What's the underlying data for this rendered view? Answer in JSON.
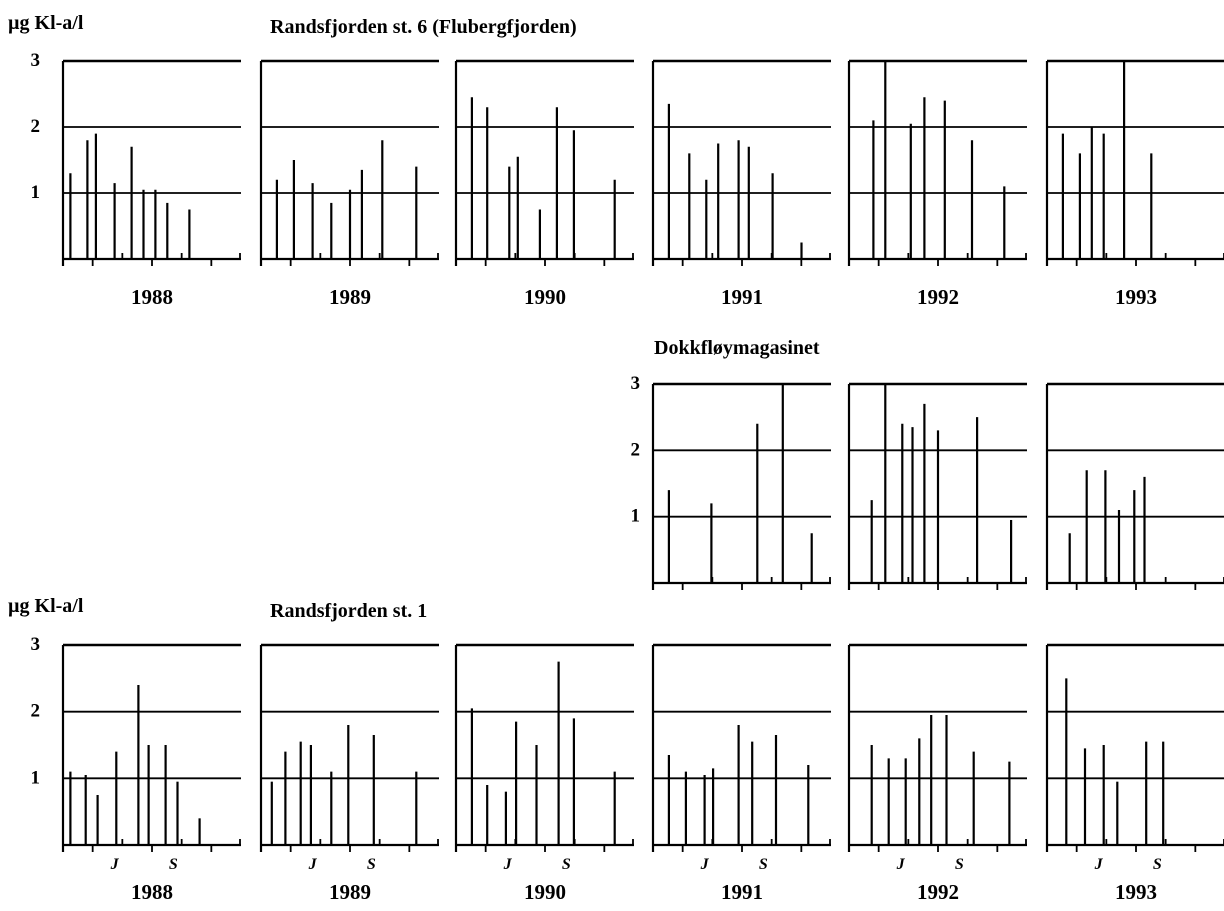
{
  "texts": {
    "unit_top": "µg Kl-a/l",
    "title_top": "Randsfjorden st. 6 (Flubergfjorden)",
    "title_mid": "Dokkfløymagasinet",
    "unit_bottom": "µg Kl-a/l",
    "title_bottom": "Randsfjorden st. 1"
  },
  "chart_data": [
    {
      "type": "bar",
      "title": "Randsfjorden st. 6 (Flubergfjorden)",
      "ylabel": "µg Kl-a/l",
      "ylim": [
        0,
        3
      ],
      "yticks": [
        "1",
        "2",
        "3"
      ],
      "grid": true,
      "panels": [
        {
          "year": "1988",
          "x": [
            0.02,
            0.12,
            0.17,
            0.28,
            0.38,
            0.45,
            0.52,
            0.59,
            0.72
          ],
          "values": [
            1.3,
            1.8,
            1.9,
            1.15,
            1.7,
            1.05,
            1.05,
            0.85,
            0.75
          ]
        },
        {
          "year": "1989",
          "x": [
            0.07,
            0.17,
            0.28,
            0.39,
            0.5,
            0.57,
            0.69,
            0.89
          ],
          "values": [
            1.2,
            1.5,
            1.15,
            0.85,
            1.05,
            1.35,
            1.8,
            1.4
          ]
        },
        {
          "year": "1990",
          "x": [
            0.07,
            0.16,
            0.29,
            0.34,
            0.47,
            0.57,
            0.67,
            0.91
          ],
          "values": [
            2.45,
            2.3,
            1.4,
            1.55,
            0.75,
            2.3,
            1.95,
            1.2
          ]
        },
        {
          "year": "1991",
          "x": [
            0.07,
            0.19,
            0.29,
            0.36,
            0.48,
            0.54,
            0.68,
            0.85
          ],
          "values": [
            2.35,
            1.6,
            1.2,
            1.75,
            1.8,
            1.7,
            1.3,
            0.25
          ]
        },
        {
          "year": "1992",
          "x": [
            0.12,
            0.19,
            0.34,
            0.42,
            0.54,
            0.7,
            0.89
          ],
          "values": [
            2.1,
            3.0,
            2.05,
            2.45,
            2.4,
            1.8,
            1.1
          ]
        },
        {
          "year": "1993",
          "x": [
            0.07,
            0.17,
            0.24,
            0.31,
            0.43,
            0.59
          ],
          "values": [
            1.9,
            1.6,
            2.0,
            1.9,
            3.0,
            1.6
          ]
        }
      ]
    },
    {
      "type": "bar",
      "title": "Dokkfløymagasinet",
      "ylim": [
        0,
        3
      ],
      "yticks": [
        "1",
        "2",
        "3"
      ],
      "grid": true,
      "panels": [
        {
          "year": "1991",
          "x": [
            0.07,
            0.32,
            0.59,
            0.74,
            0.91
          ],
          "values": [
            1.4,
            1.2,
            2.4,
            3.0,
            0.75
          ]
        },
        {
          "year": "1992",
          "x": [
            0.11,
            0.19,
            0.29,
            0.35,
            0.42,
            0.5,
            0.73,
            0.93
          ],
          "values": [
            1.25,
            3.0,
            2.4,
            2.35,
            2.7,
            2.3,
            2.5,
            0.95
          ]
        },
        {
          "year": "1993",
          "x": [
            0.11,
            0.21,
            0.32,
            0.4,
            0.49,
            0.55
          ],
          "values": [
            0.75,
            1.7,
            1.7,
            1.1,
            1.4,
            1.6
          ]
        }
      ]
    },
    {
      "type": "bar",
      "title": "Randsfjorden st. 1",
      "ylabel": "µg Kl-a/l",
      "ylim": [
        0,
        3
      ],
      "yticks": [
        "1",
        "2",
        "3"
      ],
      "xticks": [
        "J",
        "S"
      ],
      "grid": true,
      "panels": [
        {
          "year": "1988",
          "x": [
            0.02,
            0.11,
            0.18,
            0.29,
            0.42,
            0.48,
            0.58,
            0.65,
            0.78
          ],
          "values": [
            1.1,
            1.05,
            0.75,
            1.4,
            2.4,
            1.5,
            1.5,
            0.95,
            0.4
          ]
        },
        {
          "year": "1989",
          "x": [
            0.04,
            0.12,
            0.21,
            0.27,
            0.39,
            0.49,
            0.64,
            0.89
          ],
          "values": [
            0.95,
            1.4,
            1.55,
            1.5,
            1.1,
            1.8,
            1.65,
            1.1
          ]
        },
        {
          "year": "1990",
          "x": [
            0.07,
            0.16,
            0.27,
            0.33,
            0.45,
            0.58,
            0.67,
            0.91
          ],
          "values": [
            2.05,
            0.9,
            0.8,
            1.85,
            1.5,
            2.75,
            1.9,
            1.1
          ]
        },
        {
          "year": "1991",
          "x": [
            0.07,
            0.17,
            0.28,
            0.33,
            0.48,
            0.56,
            0.7,
            0.89
          ],
          "values": [
            1.35,
            1.1,
            1.05,
            1.15,
            1.8,
            1.55,
            1.65,
            1.2
          ]
        },
        {
          "year": "1992",
          "x": [
            0.11,
            0.21,
            0.31,
            0.39,
            0.46,
            0.55,
            0.71,
            0.92
          ],
          "values": [
            1.5,
            1.3,
            1.3,
            1.6,
            1.95,
            1.95,
            1.4,
            1.25
          ]
        },
        {
          "year": "1993",
          "x": [
            0.09,
            0.2,
            0.31,
            0.39,
            0.56,
            0.66
          ],
          "values": [
            2.5,
            1.45,
            1.5,
            0.95,
            1.55,
            1.55
          ]
        }
      ]
    }
  ]
}
